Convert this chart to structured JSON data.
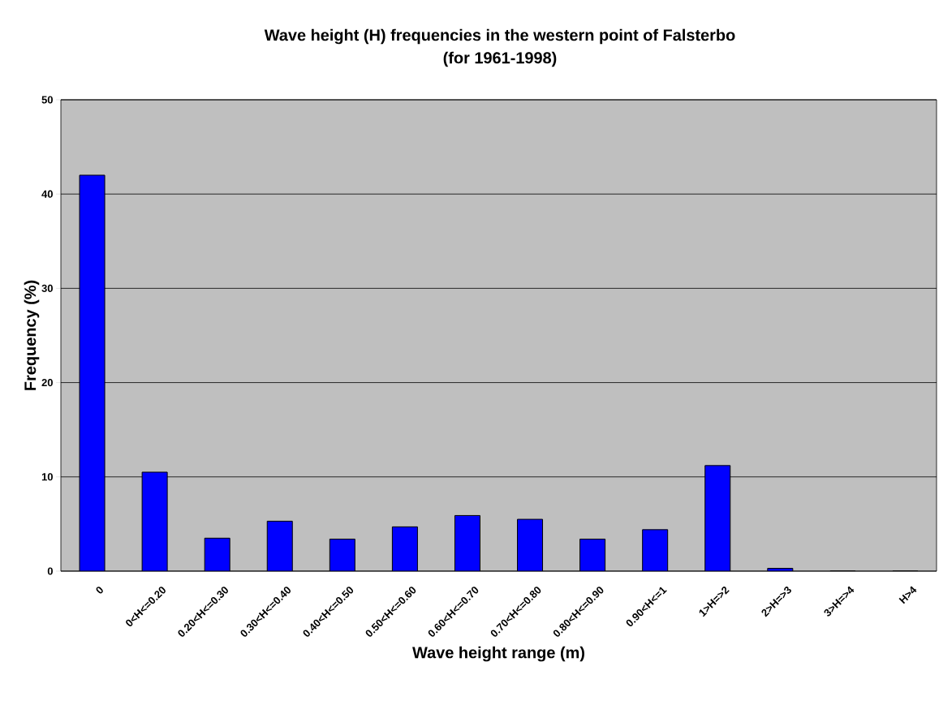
{
  "chart_data": {
    "type": "bar",
    "title": "Wave height (H) frequencies in the western point of Falsterbo",
    "subtitle": "(for 1961-1998)",
    "xlabel": "Wave height range (m)",
    "ylabel": "Frequency (%)",
    "categories": [
      "0",
      "0<H<=0.20",
      "0.20<H<=0.30",
      "0.30<H<=0.40",
      "0.40<H<=0.50",
      "0.50<H<=0.60",
      "0.60<H<=0.70",
      "0.70<H<=0.80",
      "0.80<H<=0.90",
      "0.90<H<=1",
      "1>H=>2",
      "2>H=>3",
      "3>H=>4",
      "H>4"
    ],
    "values": [
      42,
      10.5,
      3.5,
      5.3,
      3.4,
      4.7,
      5.9,
      5.5,
      3.4,
      4.4,
      11.2,
      0.3,
      0,
      0
    ],
    "color": "#0000ff",
    "ylim": [
      0,
      50
    ],
    "yticks": [
      0,
      10,
      20,
      30,
      40,
      50
    ],
    "grid": "y"
  }
}
